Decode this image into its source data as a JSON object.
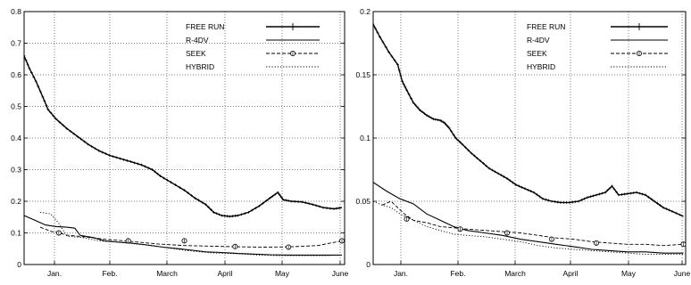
{
  "chart_data": [
    {
      "type": "line",
      "x_ticks": [
        "Jan.",
        "Feb.",
        "March",
        "April",
        "May",
        "June"
      ],
      "y_ticks": [
        "0",
        "0.1",
        "0.2",
        "0.3",
        "0.4",
        "0.5",
        "0.6",
        "0.7",
        "0.8"
      ],
      "ylim": [
        0,
        0.8
      ],
      "grid": true,
      "legend_position": "top-right",
      "series": [
        {
          "name": "FREE RUN",
          "style": "solid-plus",
          "points": [
            [
              0,
              0.66
            ],
            [
              0.1,
              0.62
            ],
            [
              0.22,
              0.58
            ],
            [
              0.35,
              0.53
            ],
            [
              0.45,
              0.49
            ],
            [
              0.6,
              0.46
            ],
            [
              0.8,
              0.43
            ],
            [
              1.0,
              0.405
            ],
            [
              1.2,
              0.38
            ],
            [
              1.4,
              0.36
            ],
            [
              1.6,
              0.345
            ],
            [
              1.8,
              0.335
            ],
            [
              2.0,
              0.325
            ],
            [
              2.2,
              0.315
            ],
            [
              2.4,
              0.3
            ],
            [
              2.55,
              0.28
            ],
            [
              2.75,
              0.26
            ],
            [
              3.0,
              0.235
            ],
            [
              3.2,
              0.21
            ],
            [
              3.4,
              0.19
            ],
            [
              3.55,
              0.165
            ],
            [
              3.7,
              0.155
            ],
            [
              3.85,
              0.152
            ],
            [
              4.0,
              0.155
            ],
            [
              4.2,
              0.165
            ],
            [
              4.4,
              0.185
            ],
            [
              4.6,
              0.21
            ],
            [
              4.75,
              0.228
            ],
            [
              4.85,
              0.205
            ],
            [
              5.0,
              0.2
            ],
            [
              5.2,
              0.198
            ],
            [
              5.4,
              0.19
            ],
            [
              5.6,
              0.18
            ],
            [
              5.8,
              0.176
            ],
            [
              5.95,
              0.18
            ]
          ]
        },
        {
          "name": "R-4DV",
          "style": "solid",
          "points": [
            [
              0,
              0.155
            ],
            [
              0.2,
              0.14
            ],
            [
              0.4,
              0.125
            ],
            [
              0.6,
              0.12
            ],
            [
              0.8,
              0.118
            ],
            [
              0.95,
              0.115
            ],
            [
              1.05,
              0.092
            ],
            [
              1.3,
              0.085
            ],
            [
              1.5,
              0.075
            ],
            [
              1.8,
              0.07
            ],
            [
              2.0,
              0.068
            ],
            [
              2.3,
              0.062
            ],
            [
              2.6,
              0.055
            ],
            [
              2.9,
              0.05
            ],
            [
              3.15,
              0.045
            ],
            [
              3.4,
              0.04
            ],
            [
              3.7,
              0.038
            ],
            [
              4.0,
              0.035
            ],
            [
              4.3,
              0.033
            ],
            [
              4.6,
              0.031
            ],
            [
              5.0,
              0.03
            ],
            [
              5.4,
              0.03
            ],
            [
              5.95,
              0.03
            ]
          ]
        },
        {
          "name": "SEEK",
          "style": "dashed-circle",
          "points": [
            [
              0.3,
              0.118
            ],
            [
              0.5,
              0.105
            ],
            [
              0.65,
              0.1
            ],
            [
              0.8,
              0.093
            ],
            [
              1.1,
              0.088
            ],
            [
              1.5,
              0.08
            ],
            [
              2.0,
              0.073
            ],
            [
              2.5,
              0.065
            ],
            [
              3.0,
              0.06
            ],
            [
              3.5,
              0.058
            ],
            [
              4.0,
              0.056
            ],
            [
              4.5,
              0.055
            ],
            [
              5.0,
              0.056
            ],
            [
              5.5,
              0.06
            ],
            [
              5.95,
              0.075
            ]
          ],
          "markers": [
            [
              0.65,
              0.1
            ],
            [
              1.95,
              0.075
            ],
            [
              3.0,
              0.075
            ],
            [
              3.95,
              0.057
            ],
            [
              4.95,
              0.055
            ],
            [
              5.95,
              0.075
            ]
          ]
        },
        {
          "name": "HYBRID",
          "style": "dotted",
          "points": [
            [
              0.3,
              0.165
            ],
            [
              0.5,
              0.16
            ],
            [
              0.65,
              0.13
            ],
            [
              0.8,
              0.09
            ],
            [
              1.1,
              0.085
            ],
            [
              1.4,
              0.075
            ],
            [
              1.8,
              0.07
            ],
            [
              2.2,
              0.063
            ],
            [
              2.6,
              0.055
            ],
            [
              3.0,
              0.045
            ],
            [
              3.3,
              0.04
            ],
            [
              3.6,
              0.036
            ],
            [
              4.0,
              0.034
            ],
            [
              4.4,
              0.03
            ],
            [
              4.8,
              0.028
            ],
            [
              5.2,
              0.028
            ],
            [
              5.6,
              0.028
            ],
            [
              5.95,
              0.03
            ]
          ]
        }
      ]
    },
    {
      "type": "line",
      "x_ticks": [
        "Jan.",
        "Feb.",
        "March",
        "April",
        "May",
        "June"
      ],
      "y_ticks": [
        "0",
        "0.05",
        "0.1",
        "0.15",
        "0.2"
      ],
      "ylim": [
        0,
        0.2
      ],
      "grid": true,
      "legend_position": "top-right",
      "series": [
        {
          "name": "FREE RUN",
          "style": "solid-plus",
          "points": [
            [
              0,
              0.19
            ],
            [
              0.15,
              0.18
            ],
            [
              0.35,
              0.168
            ],
            [
              0.55,
              0.158
            ],
            [
              0.65,
              0.145
            ],
            [
              0.75,
              0.138
            ],
            [
              0.9,
              0.128
            ],
            [
              1.05,
              0.122
            ],
            [
              1.2,
              0.118
            ],
            [
              1.35,
              0.115
            ],
            [
              1.5,
              0.114
            ],
            [
              1.6,
              0.112
            ],
            [
              1.7,
              0.108
            ],
            [
              1.85,
              0.1
            ],
            [
              2.0,
              0.095
            ],
            [
              2.2,
              0.088
            ],
            [
              2.4,
              0.082
            ],
            [
              2.6,
              0.076
            ],
            [
              2.8,
              0.072
            ],
            [
              3.0,
              0.068
            ],
            [
              3.2,
              0.063
            ],
            [
              3.4,
              0.06
            ],
            [
              3.6,
              0.057
            ],
            [
              3.8,
              0.052
            ],
            [
              4.0,
              0.05
            ],
            [
              4.2,
              0.049
            ],
            [
              4.4,
              0.049
            ],
            [
              4.6,
              0.05
            ],
            [
              4.8,
              0.053
            ],
            [
              5.0,
              0.055
            ],
            [
              5.2,
              0.057
            ],
            [
              5.35,
              0.062
            ],
            [
              5.5,
              0.055
            ],
            [
              5.7,
              0.056
            ],
            [
              5.9,
              0.057
            ],
            [
              6.1,
              0.055
            ],
            [
              6.3,
              0.05
            ],
            [
              6.5,
              0.045
            ],
            [
              6.7,
              0.042
            ],
            [
              6.95,
              0.038
            ]
          ]
        },
        {
          "name": "R-4DV",
          "style": "solid",
          "points": [
            [
              0,
              0.065
            ],
            [
              0.3,
              0.058
            ],
            [
              0.6,
              0.052
            ],
            [
              0.9,
              0.048
            ],
            [
              1.2,
              0.04
            ],
            [
              1.5,
              0.035
            ],
            [
              1.8,
              0.03
            ],
            [
              2.1,
              0.027
            ],
            [
              2.5,
              0.025
            ],
            [
              2.9,
              0.023
            ],
            [
              3.3,
              0.02
            ],
            [
              3.7,
              0.018
            ],
            [
              4.1,
              0.016
            ],
            [
              4.5,
              0.014
            ],
            [
              4.9,
              0.012
            ],
            [
              5.3,
              0.011
            ],
            [
              5.7,
              0.01
            ],
            [
              6.1,
              0.01
            ],
            [
              6.5,
              0.009
            ],
            [
              6.95,
              0.009
            ]
          ]
        },
        {
          "name": "SEEK",
          "style": "dashed-circle",
          "points": [
            [
              0.2,
              0.047
            ],
            [
              0.4,
              0.05
            ],
            [
              0.55,
              0.045
            ],
            [
              0.7,
              0.04
            ],
            [
              0.9,
              0.035
            ],
            [
              1.2,
              0.033
            ],
            [
              1.5,
              0.03
            ],
            [
              1.8,
              0.029
            ],
            [
              2.1,
              0.028
            ],
            [
              2.5,
              0.027
            ],
            [
              2.9,
              0.026
            ],
            [
              3.3,
              0.025
            ],
            [
              3.7,
              0.023
            ],
            [
              4.1,
              0.021
            ],
            [
              4.5,
              0.02
            ],
            [
              4.9,
              0.018
            ],
            [
              5.3,
              0.017
            ],
            [
              5.7,
              0.016
            ],
            [
              6.1,
              0.016
            ],
            [
              6.5,
              0.015
            ],
            [
              6.95,
              0.016
            ]
          ],
          "markers": [
            [
              0.75,
              0.036
            ],
            [
              1.95,
              0.028
            ],
            [
              3.0,
              0.025
            ],
            [
              4.0,
              0.02
            ],
            [
              5.0,
              0.017
            ],
            [
              6.95,
              0.016
            ]
          ]
        },
        {
          "name": "HYBRID",
          "style": "dotted",
          "points": [
            [
              0,
              0.05
            ],
            [
              0.2,
              0.047
            ],
            [
              0.4,
              0.045
            ],
            [
              0.6,
              0.04
            ],
            [
              0.9,
              0.035
            ],
            [
              1.2,
              0.03
            ],
            [
              1.5,
              0.027
            ],
            [
              1.8,
              0.024
            ],
            [
              2.1,
              0.023
            ],
            [
              2.5,
              0.022
            ],
            [
              2.9,
              0.02
            ],
            [
              3.3,
              0.018
            ],
            [
              3.7,
              0.015
            ],
            [
              4.1,
              0.013
            ],
            [
              4.5,
              0.012
            ],
            [
              4.9,
              0.011
            ],
            [
              5.3,
              0.01
            ],
            [
              5.7,
              0.009
            ],
            [
              6.1,
              0.008
            ],
            [
              6.5,
              0.008
            ],
            [
              6.95,
              0.008
            ]
          ]
        }
      ]
    }
  ]
}
